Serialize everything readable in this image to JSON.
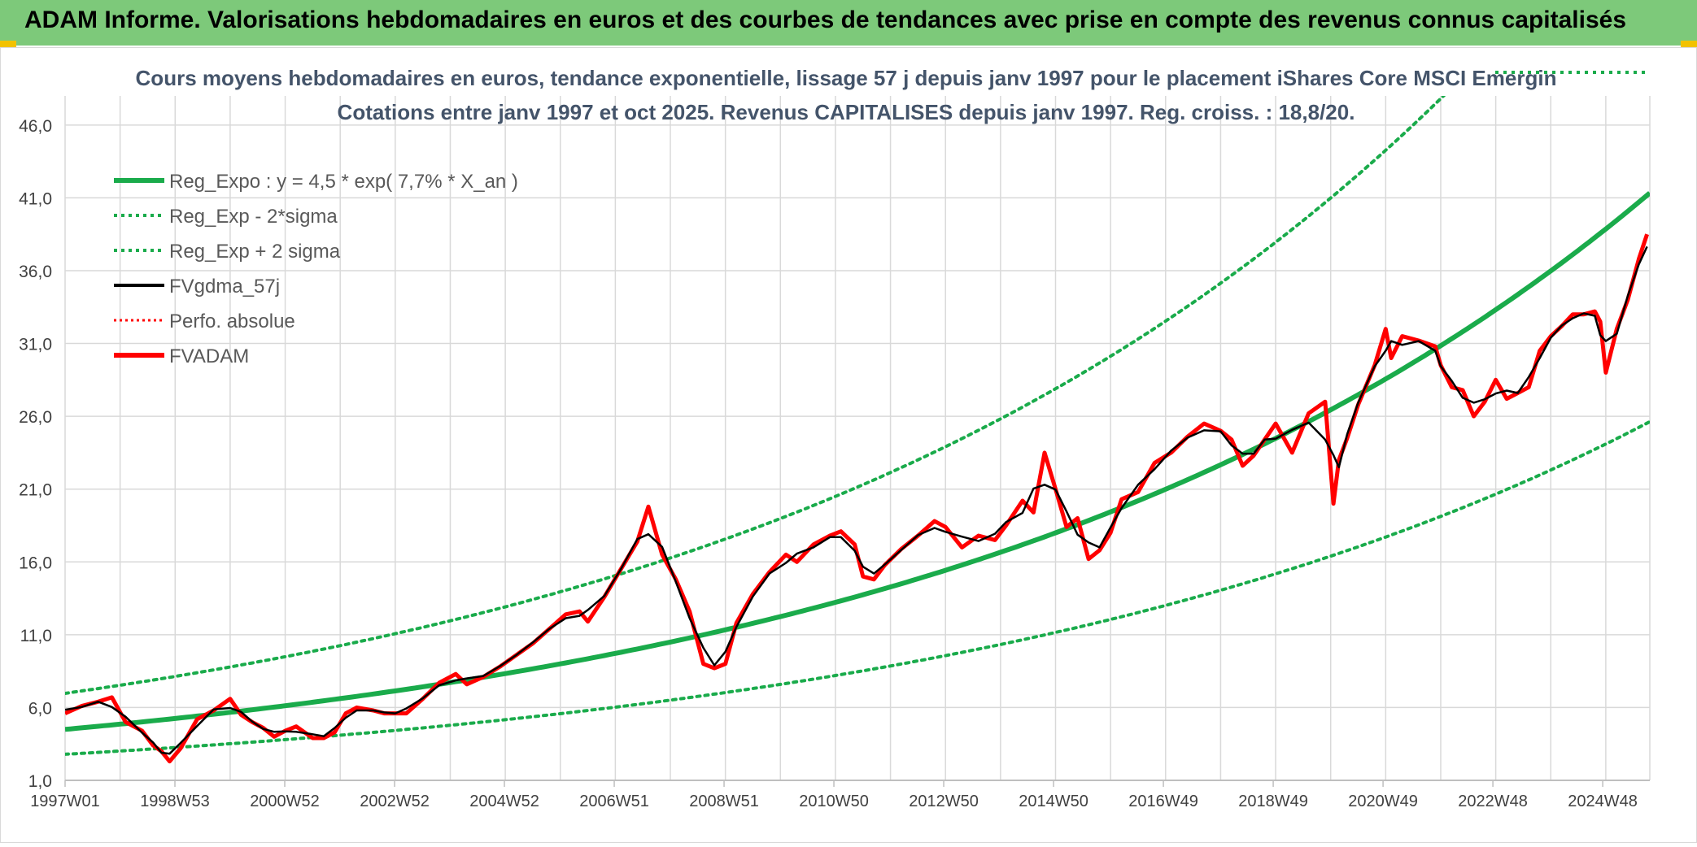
{
  "header": {
    "title": "ADAM Informe. Valorisations hebdomadaires en euros et des courbes de tendances avec prise en compte des revenus connus capitalisés"
  },
  "colors": {
    "header_bg": "#7dc97a",
    "trend": "#1aab4b",
    "smoothed": "#000000",
    "fvadam": "#ff0000",
    "grid": "#d9d9d9",
    "title_text": "#44546a",
    "axis_text": "#404040"
  },
  "chart_data": {
    "type": "line",
    "title": "Cours moyens hebdomadaires en euros, tendance exponentielle, lissage 57 j depuis janv 1997 pour le placement iShares Core MSCI Emergin",
    "subtitle": "Cotations entre janv 1997 et oct 2025. Revenus CAPITALISES depuis janv 1997. Reg. croiss. : 18,8/20.",
    "xlabel": "",
    "ylabel": "",
    "ylim": [
      1,
      48
    ],
    "y_ticks": [
      "1,0",
      "6,0",
      "11,0",
      "16,0",
      "21,0",
      "26,0",
      "31,0",
      "36,0",
      "41,0",
      "46,0"
    ],
    "x_range": [
      1997.0,
      2025.8
    ],
    "x_ticks": [
      "1997W01",
      "1998W53",
      "2000W52",
      "2002W52",
      "2004W52",
      "2006W51",
      "2008W51",
      "2010W50",
      "2012W50",
      "2014W50",
      "2016W49",
      "2018W49",
      "2020W49",
      "2022W48",
      "2024W48"
    ],
    "grid": true,
    "legend_placement": "top-left",
    "trend": {
      "a": 4.5,
      "rate": 0.077,
      "lower_factor": 0.62,
      "upper_factor": 1.55
    },
    "series": [
      {
        "name": "Reg_Expo : y = 4,5 * exp( 7,7% *  X_an )",
        "style": "solid",
        "color": "#1aab4b"
      },
      {
        "name": "Reg_Exp - 2*sigma",
        "style": "dotted",
        "color": "#1aab4b"
      },
      {
        "name": "Reg_Exp + 2 sigma",
        "style": "dotted",
        "color": "#1aab4b"
      },
      {
        "name": "FVgdma_57j",
        "style": "solid",
        "color": "#000000"
      },
      {
        "name": "Perfo. absolue",
        "style": "dotted",
        "color": "#ff0000"
      },
      {
        "name": "FVADAM",
        "style": "solid",
        "color": "#ff0000"
      }
    ],
    "fvadam_points": {
      "x": [
        1997.0,
        1997.3,
        1997.6,
        1997.85,
        1998.1,
        1998.4,
        1998.6,
        1998.75,
        1998.9,
        1999.1,
        1999.4,
        1999.7,
        2000.0,
        2000.2,
        2000.4,
        2000.6,
        2000.8,
        2001.0,
        2001.2,
        2001.5,
        2001.7,
        2001.9,
        2002.1,
        2002.3,
        2002.6,
        2002.8,
        2003.0,
        2003.2,
        2003.5,
        2003.8,
        2004.1,
        2004.3,
        2004.6,
        2004.9,
        2005.2,
        2005.5,
        2005.8,
        2006.1,
        2006.35,
        2006.5,
        2006.8,
        2007.1,
        2007.4,
        2007.6,
        2007.85,
        2008.1,
        2008.35,
        2008.6,
        2008.8,
        2009.0,
        2009.2,
        2009.5,
        2009.8,
        2010.1,
        2010.3,
        2010.6,
        2010.9,
        2011.1,
        2011.35,
        2011.5,
        2011.7,
        2011.9,
        2012.2,
        2012.5,
        2012.8,
        2013.0,
        2013.3,
        2013.6,
        2013.9,
        2014.1,
        2014.4,
        2014.6,
        2014.8,
        2015.0,
        2015.2,
        2015.4,
        2015.6,
        2015.8,
        2016.0,
        2016.2,
        2016.5,
        2016.8,
        2017.1,
        2017.4,
        2017.7,
        2018.0,
        2018.2,
        2018.4,
        2018.6,
        2018.8,
        2019.0,
        2019.3,
        2019.6,
        2019.9,
        2020.05,
        2020.15,
        2020.3,
        2020.5,
        2020.8,
        2021.0,
        2021.1,
        2021.3,
        2021.6,
        2021.9,
        2022.0,
        2022.2,
        2022.4,
        2022.6,
        2022.8,
        2023.0,
        2023.2,
        2023.4,
        2023.6,
        2023.8,
        2024.0,
        2024.2,
        2024.4,
        2024.6,
        2024.8,
        2024.9,
        2025.0,
        2025.2,
        2025.4,
        2025.6,
        2025.75
      ],
      "y": [
        5.6,
        6.1,
        6.4,
        6.7,
        5.0,
        4.4,
        3.4,
        3.0,
        2.3,
        3.2,
        5.2,
        5.8,
        6.6,
        5.5,
        5.0,
        4.6,
        4.0,
        4.4,
        4.7,
        3.9,
        3.9,
        4.3,
        5.6,
        6.0,
        5.8,
        5.6,
        5.6,
        5.6,
        6.6,
        7.7,
        8.3,
        7.6,
        8.1,
        8.8,
        9.6,
        10.4,
        11.4,
        12.4,
        12.6,
        11.9,
        13.6,
        15.5,
        17.4,
        19.8,
        16.5,
        14.8,
        12.6,
        9.0,
        8.7,
        9.0,
        11.8,
        13.8,
        15.3,
        16.5,
        16.0,
        17.2,
        17.8,
        18.1,
        17.2,
        15.0,
        14.8,
        15.8,
        16.9,
        17.8,
        18.8,
        18.4,
        17.0,
        17.8,
        17.5,
        18.5,
        20.2,
        19.4,
        23.5,
        21.0,
        18.4,
        19.0,
        16.2,
        16.8,
        18.0,
        20.3,
        20.8,
        22.8,
        23.5,
        24.6,
        25.5,
        25.0,
        24.4,
        22.6,
        23.3,
        24.4,
        25.5,
        23.5,
        26.2,
        27.0,
        20.0,
        23.0,
        24.5,
        26.8,
        29.5,
        32.0,
        30.0,
        31.5,
        31.2,
        30.8,
        29.5,
        28.0,
        27.8,
        26.0,
        27.0,
        28.5,
        27.2,
        27.6,
        28.0,
        30.5,
        31.5,
        32.2,
        33.0,
        33.0,
        33.2,
        32.5,
        29.0,
        32.0,
        34.0,
        36.8,
        38.5
      ]
    }
  }
}
